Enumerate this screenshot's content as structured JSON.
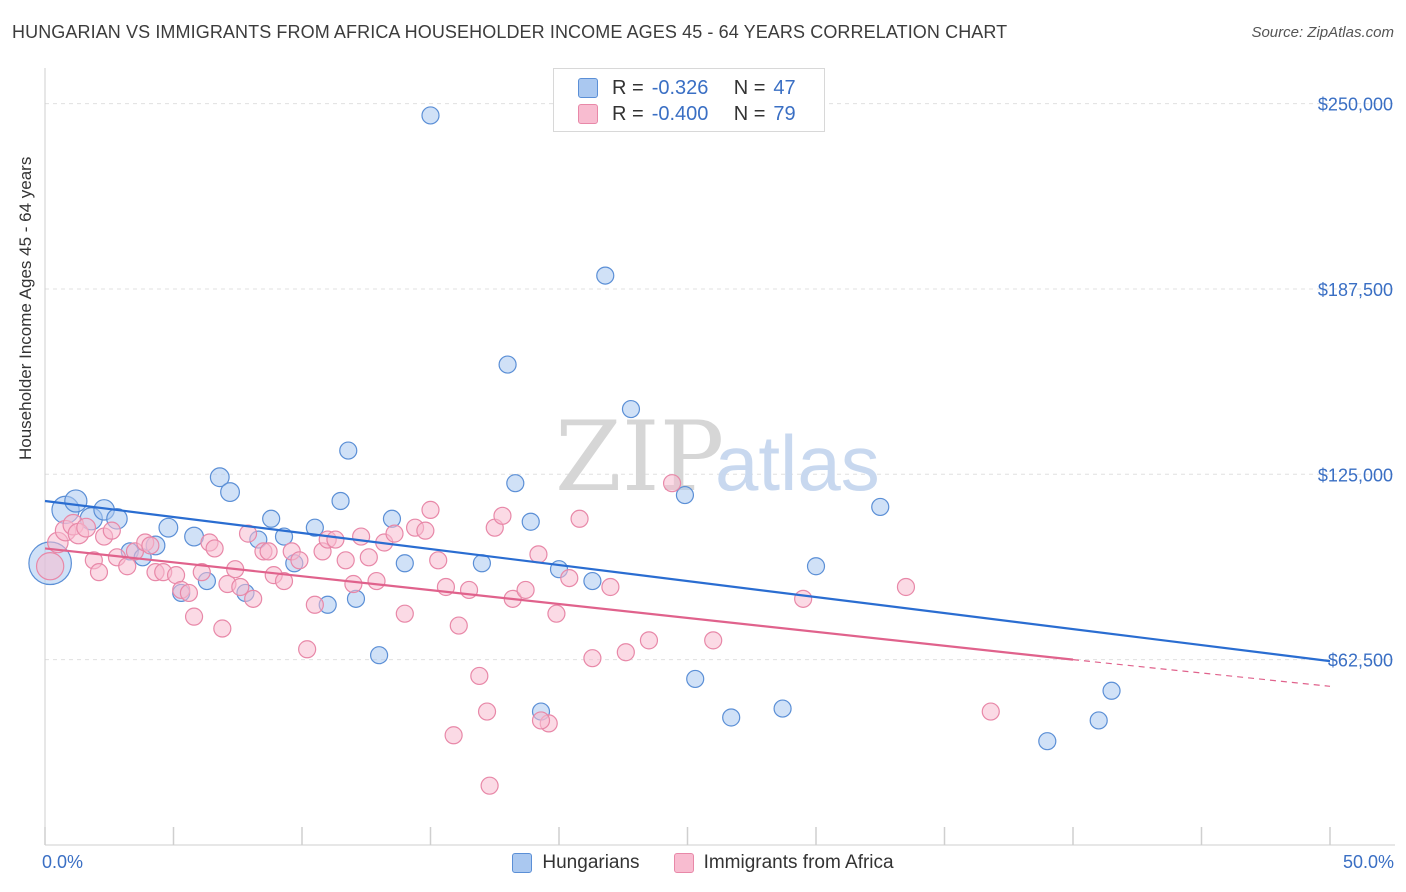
{
  "title": "HUNGARIAN VS IMMIGRANTS FROM AFRICA HOUSEHOLDER INCOME AGES 45 - 64 YEARS CORRELATION CHART",
  "source": "Source: ZipAtlas.com",
  "legend_top": [
    {
      "r_label": "R =",
      "r_value": "-0.326",
      "n_label": "N =",
      "n_value": "47"
    },
    {
      "r_label": "R =",
      "r_value": "-0.400",
      "n_label": "N =",
      "n_value": "79"
    }
  ],
  "colors": {
    "blue_fill": "#aac8f0",
    "blue_stroke": "#5b8fd6",
    "blue_line": "#2a6dd1",
    "pink_fill": "#f8bcd0",
    "pink_stroke": "#e888a8",
    "pink_line": "#e0628c",
    "tick_label": "#3a6fc4",
    "grid": "#e0e0e0"
  },
  "chart_data": {
    "type": "scatter",
    "title": "HUNGARIAN VS IMMIGRANTS FROM AFRICA HOUSEHOLDER INCOME AGES 45 - 64 YEARS CORRELATION CHART",
    "xlabel": "",
    "ylabel": "Householder Income Ages 45 - 64 years",
    "xlim": [
      0,
      50
    ],
    "ylim": [
      0,
      262000
    ],
    "x_tick_labels": [
      "0.0%",
      "50.0%"
    ],
    "y_ticks": [
      62500,
      125000,
      187500,
      250000
    ],
    "y_tick_labels": [
      "$62,500",
      "$125,000",
      "$187,500",
      "$250,000"
    ],
    "grid": true,
    "legend_position": "bottom",
    "series": [
      {
        "name": "Hungarians",
        "color": "#5b8fd6",
        "trend": {
          "x": [
            0,
            50
          ],
          "y": [
            116000,
            62000
          ]
        },
        "points": [
          [
            0.2,
            95000,
            2.5
          ],
          [
            0.8,
            113000,
            1.6
          ],
          [
            1.2,
            116000,
            1.3
          ],
          [
            1.8,
            110000,
            1.3
          ],
          [
            2.3,
            113000,
            1.2
          ],
          [
            2.8,
            110000,
            1.2
          ],
          [
            3.3,
            99000,
            1.0
          ],
          [
            3.8,
            97000,
            1.0
          ],
          [
            4.3,
            101000,
            1.1
          ],
          [
            4.8,
            107000,
            1.1
          ],
          [
            5.3,
            85000,
            1.0
          ],
          [
            5.8,
            104000,
            1.1
          ],
          [
            6.3,
            89000,
            1.0
          ],
          [
            6.8,
            124000,
            1.1
          ],
          [
            7.2,
            119000,
            1.1
          ],
          [
            7.8,
            85000,
            1.0
          ],
          [
            8.3,
            103000,
            1.0
          ],
          [
            8.8,
            110000,
            1.0
          ],
          [
            9.3,
            104000,
            1.0
          ],
          [
            9.7,
            95000,
            1.0
          ],
          [
            10.5,
            107000,
            1.0
          ],
          [
            11.0,
            81000,
            1.0
          ],
          [
            11.5,
            116000,
            1.0
          ],
          [
            11.8,
            133000,
            1.0
          ],
          [
            12.1,
            83000,
            1.0
          ],
          [
            13.0,
            64000,
            1.0
          ],
          [
            13.5,
            110000,
            1.0
          ],
          [
            14.0,
            95000,
            1.0
          ],
          [
            15.0,
            246000,
            1.0
          ],
          [
            17.0,
            95000,
            1.0
          ],
          [
            18.0,
            162000,
            1.0
          ],
          [
            18.3,
            122000,
            1.0
          ],
          [
            18.9,
            109000,
            1.0
          ],
          [
            19.3,
            45000,
            1.0
          ],
          [
            20.0,
            93000,
            1.0
          ],
          [
            21.3,
            89000,
            1.0
          ],
          [
            21.8,
            192000,
            1.0
          ],
          [
            22.8,
            147000,
            1.0
          ],
          [
            24.9,
            118000,
            1.0
          ],
          [
            25.3,
            56000,
            1.0
          ],
          [
            26.7,
            43000,
            1.0
          ],
          [
            28.7,
            46000,
            1.0
          ],
          [
            30.0,
            94000,
            1.0
          ],
          [
            32.5,
            114000,
            1.0
          ],
          [
            39.0,
            35000,
            1.0
          ],
          [
            41.0,
            42000,
            1.0
          ],
          [
            41.5,
            52000,
            1.0
          ]
        ]
      },
      {
        "name": "Immigrants from Africa",
        "color": "#e888a8",
        "trend": {
          "x": [
            0,
            40
          ],
          "y": [
            100000,
            62500
          ]
        },
        "trend_dashed": {
          "x": [
            40,
            50
          ],
          "y": [
            62500,
            53500
          ]
        },
        "points": [
          [
            0.2,
            94000,
            1.6
          ],
          [
            0.5,
            102000,
            1.2
          ],
          [
            0.8,
            106000,
            1.2
          ],
          [
            1.1,
            108000,
            1.2
          ],
          [
            1.3,
            105000,
            1.2
          ],
          [
            1.6,
            107000,
            1.1
          ],
          [
            1.9,
            96000,
            1.0
          ],
          [
            2.1,
            92000,
            1.0
          ],
          [
            2.3,
            104000,
            1.0
          ],
          [
            2.6,
            106000,
            1.0
          ],
          [
            2.8,
            97000,
            1.0
          ],
          [
            3.2,
            94000,
            1.0
          ],
          [
            3.5,
            99000,
            1.0
          ],
          [
            3.9,
            102000,
            1.0
          ],
          [
            4.1,
            101000,
            1.0
          ],
          [
            4.3,
            92000,
            1.0
          ],
          [
            4.6,
            92000,
            1.0
          ],
          [
            5.1,
            91000,
            1.0
          ],
          [
            5.3,
            86000,
            1.0
          ],
          [
            5.6,
            85000,
            1.0
          ],
          [
            5.8,
            77000,
            1.0
          ],
          [
            6.1,
            92000,
            1.0
          ],
          [
            6.4,
            102000,
            1.0
          ],
          [
            6.6,
            100000,
            1.0
          ],
          [
            6.9,
            73000,
            1.0
          ],
          [
            7.1,
            88000,
            1.0
          ],
          [
            7.4,
            93000,
            1.0
          ],
          [
            7.6,
            87000,
            1.0
          ],
          [
            7.9,
            105000,
            1.0
          ],
          [
            8.1,
            83000,
            1.0
          ],
          [
            8.5,
            99000,
            1.0
          ],
          [
            8.7,
            99000,
            1.0
          ],
          [
            8.9,
            91000,
            1.0
          ],
          [
            9.3,
            89000,
            1.0
          ],
          [
            9.6,
            99000,
            1.0
          ],
          [
            9.9,
            96000,
            1.0
          ],
          [
            10.2,
            66000,
            1.0
          ],
          [
            10.5,
            81000,
            1.0
          ],
          [
            10.8,
            99000,
            1.0
          ],
          [
            11.0,
            103000,
            1.0
          ],
          [
            11.3,
            103000,
            1.0
          ],
          [
            11.7,
            96000,
            1.0
          ],
          [
            12.0,
            88000,
            1.0
          ],
          [
            12.3,
            104000,
            1.0
          ],
          [
            12.6,
            97000,
            1.0
          ],
          [
            12.9,
            89000,
            1.0
          ],
          [
            13.2,
            102000,
            1.0
          ],
          [
            13.6,
            105000,
            1.0
          ],
          [
            14.0,
            78000,
            1.0
          ],
          [
            14.4,
            107000,
            1.0
          ],
          [
            14.8,
            106000,
            1.0
          ],
          [
            15.0,
            113000,
            1.0
          ],
          [
            15.3,
            96000,
            1.0
          ],
          [
            15.6,
            87000,
            1.0
          ],
          [
            16.1,
            74000,
            1.0
          ],
          [
            16.5,
            86000,
            1.0
          ],
          [
            16.9,
            57000,
            1.0
          ],
          [
            17.2,
            45000,
            1.0
          ],
          [
            17.5,
            107000,
            1.0
          ],
          [
            17.8,
            111000,
            1.0
          ],
          [
            18.2,
            83000,
            1.0
          ],
          [
            18.7,
            86000,
            1.0
          ],
          [
            19.2,
            98000,
            1.0
          ],
          [
            19.6,
            41000,
            1.0
          ],
          [
            19.9,
            78000,
            1.0
          ],
          [
            20.4,
            90000,
            1.0
          ],
          [
            20.8,
            110000,
            1.0
          ],
          [
            21.3,
            63000,
            1.0
          ],
          [
            22.0,
            87000,
            1.0
          ],
          [
            22.6,
            65000,
            1.0
          ],
          [
            23.5,
            69000,
            1.0
          ],
          [
            24.4,
            122000,
            1.0
          ],
          [
            26.0,
            69000,
            1.0
          ],
          [
            15.9,
            37000,
            1.0
          ],
          [
            19.3,
            42000,
            1.0
          ],
          [
            17.3,
            20000,
            1.0
          ],
          [
            29.5,
            83000,
            1.0
          ],
          [
            33.5,
            87000,
            1.0
          ],
          [
            36.8,
            45000,
            1.0
          ]
        ]
      }
    ]
  },
  "legend_bottom": [
    "Hungarians",
    "Immigrants from Africa"
  ],
  "watermark": {
    "zip": "ZIP",
    "atlas": "atlas"
  }
}
